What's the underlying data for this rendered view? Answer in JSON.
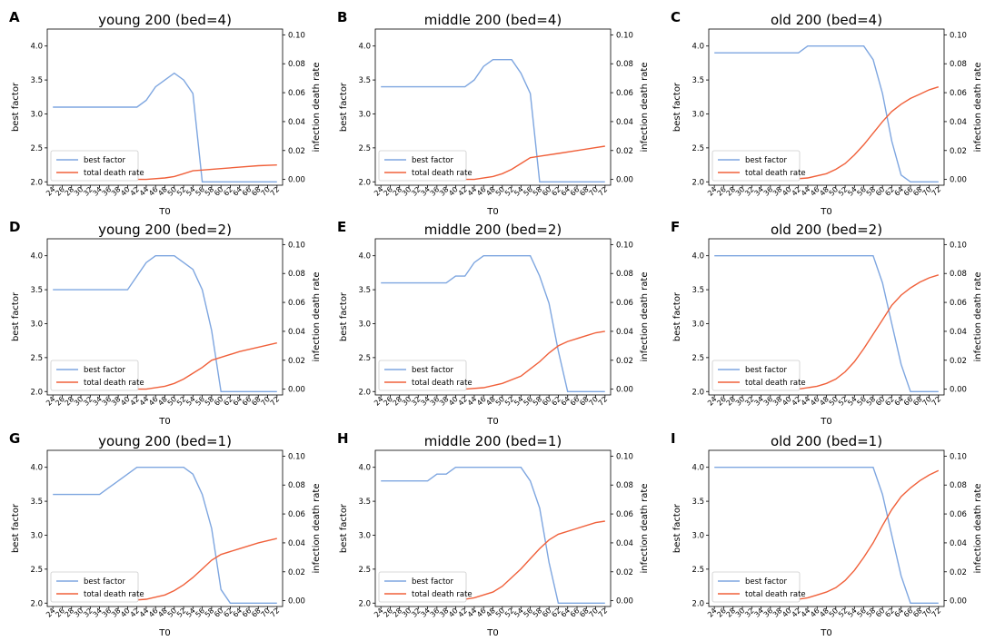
{
  "legend": {
    "best_label": "best factor",
    "death_label": "total death rate",
    "best_color": "#7ea6e0",
    "death_color": "#f0603a"
  },
  "axis_labels": {
    "xlabel": "T0",
    "ylabel_left": "best factor",
    "ylabel_right": "infection death rate"
  },
  "x_ticks": [
    24,
    26,
    28,
    30,
    32,
    34,
    36,
    38,
    40,
    42,
    44,
    46,
    48,
    50,
    52,
    54,
    56,
    58,
    60,
    62,
    64,
    66,
    68,
    70,
    72
  ],
  "left_ticks": [
    "2.0",
    "2.5",
    "3.0",
    "3.5",
    "4.0"
  ],
  "right_ticks": [
    "0.00",
    "0.02",
    "0.04",
    "0.06",
    "0.08",
    "0.10"
  ],
  "chart_data": [
    {
      "letter": "A",
      "title": "young 200 (bed=4)",
      "type": "line",
      "ylim_left": [
        1.95,
        4.25
      ],
      "ylim_right": [
        -0.004,
        0.104
      ],
      "best": [
        [
          24,
          3.1
        ],
        [
          42,
          3.1
        ],
        [
          44,
          3.2
        ],
        [
          46,
          3.4
        ],
        [
          48,
          3.5
        ],
        [
          50,
          3.6
        ],
        [
          52,
          3.5
        ],
        [
          54,
          3.3
        ],
        [
          56,
          2.0
        ],
        [
          72,
          2.0
        ]
      ],
      "death": [
        [
          24,
          0.0
        ],
        [
          44,
          0.0
        ],
        [
          48,
          0.001
        ],
        [
          50,
          0.002
        ],
        [
          52,
          0.004
        ],
        [
          54,
          0.006
        ],
        [
          56,
          0.0065
        ],
        [
          60,
          0.0075
        ],
        [
          64,
          0.0085
        ],
        [
          68,
          0.0095
        ],
        [
          72,
          0.01
        ]
      ]
    },
    {
      "letter": "B",
      "title": "middle 200 (bed=4)",
      "type": "line",
      "ylim_left": [
        1.95,
        4.25
      ],
      "ylim_right": [
        -0.004,
        0.104
      ],
      "best": [
        [
          24,
          3.4
        ],
        [
          42,
          3.4
        ],
        [
          44,
          3.5
        ],
        [
          46,
          3.7
        ],
        [
          48,
          3.8
        ],
        [
          50,
          3.8
        ],
        [
          52,
          3.8
        ],
        [
          54,
          3.6
        ],
        [
          56,
          3.3
        ],
        [
          58,
          2.0
        ],
        [
          72,
          2.0
        ]
      ],
      "death": [
        [
          24,
          0.0
        ],
        [
          44,
          0.0
        ],
        [
          48,
          0.002
        ],
        [
          50,
          0.004
        ],
        [
          52,
          0.007
        ],
        [
          54,
          0.011
        ],
        [
          56,
          0.015
        ],
        [
          58,
          0.016
        ],
        [
          62,
          0.018
        ],
        [
          66,
          0.02
        ],
        [
          70,
          0.022
        ],
        [
          72,
          0.023
        ]
      ]
    },
    {
      "letter": "C",
      "title": "old 200 (bed=4)",
      "type": "line",
      "ylim_left": [
        1.95,
        4.25
      ],
      "ylim_right": [
        -0.004,
        0.104
      ],
      "best": [
        [
          24,
          3.9
        ],
        [
          42,
          3.9
        ],
        [
          44,
          4.0
        ],
        [
          56,
          4.0
        ],
        [
          58,
          3.8
        ],
        [
          60,
          3.3
        ],
        [
          62,
          2.6
        ],
        [
          64,
          2.1
        ],
        [
          66,
          2.0
        ],
        [
          72,
          2.0
        ]
      ],
      "death": [
        [
          24,
          0.0
        ],
        [
          40,
          0.0
        ],
        [
          44,
          0.001
        ],
        [
          48,
          0.004
        ],
        [
          50,
          0.007
        ],
        [
          52,
          0.011
        ],
        [
          54,
          0.017
        ],
        [
          56,
          0.024
        ],
        [
          58,
          0.032
        ],
        [
          60,
          0.04
        ],
        [
          62,
          0.047
        ],
        [
          64,
          0.052
        ],
        [
          66,
          0.056
        ],
        [
          68,
          0.059
        ],
        [
          70,
          0.062
        ],
        [
          72,
          0.064
        ]
      ]
    },
    {
      "letter": "D",
      "title": "young 200 (bed=2)",
      "type": "line",
      "ylim_left": [
        1.95,
        4.25
      ],
      "ylim_right": [
        -0.004,
        0.104
      ],
      "best": [
        [
          24,
          3.5
        ],
        [
          40,
          3.5
        ],
        [
          42,
          3.7
        ],
        [
          44,
          3.9
        ],
        [
          46,
          4.0
        ],
        [
          50,
          4.0
        ],
        [
          52,
          3.9
        ],
        [
          54,
          3.8
        ],
        [
          56,
          3.5
        ],
        [
          58,
          2.9
        ],
        [
          60,
          2.0
        ],
        [
          72,
          2.0
        ]
      ],
      "death": [
        [
          24,
          0.0
        ],
        [
          44,
          0.0
        ],
        [
          48,
          0.002
        ],
        [
          50,
          0.004
        ],
        [
          52,
          0.007
        ],
        [
          54,
          0.011
        ],
        [
          56,
          0.015
        ],
        [
          58,
          0.02
        ],
        [
          60,
          0.022
        ],
        [
          64,
          0.026
        ],
        [
          68,
          0.029
        ],
        [
          72,
          0.032
        ]
      ]
    },
    {
      "letter": "E",
      "title": "middle 200 (bed=2)",
      "type": "line",
      "ylim_left": [
        1.95,
        4.25
      ],
      "ylim_right": [
        -0.004,
        0.104
      ],
      "best": [
        [
          24,
          3.6
        ],
        [
          38,
          3.6
        ],
        [
          40,
          3.7
        ],
        [
          42,
          3.7
        ],
        [
          44,
          3.9
        ],
        [
          46,
          4.0
        ],
        [
          56,
          4.0
        ],
        [
          58,
          3.7
        ],
        [
          60,
          3.3
        ],
        [
          62,
          2.6
        ],
        [
          64,
          2.0
        ],
        [
          72,
          2.0
        ]
      ],
      "death": [
        [
          24,
          0.0
        ],
        [
          42,
          0.0
        ],
        [
          46,
          0.001
        ],
        [
          50,
          0.004
        ],
        [
          54,
          0.009
        ],
        [
          56,
          0.014
        ],
        [
          58,
          0.019
        ],
        [
          60,
          0.025
        ],
        [
          62,
          0.03
        ],
        [
          64,
          0.033
        ],
        [
          66,
          0.035
        ],
        [
          68,
          0.037
        ],
        [
          70,
          0.039
        ],
        [
          72,
          0.04
        ]
      ]
    },
    {
      "letter": "F",
      "title": "old 200 (bed=2)",
      "type": "line",
      "ylim_left": [
        1.95,
        4.25
      ],
      "ylim_right": [
        -0.004,
        0.104
      ],
      "best": [
        [
          24,
          4.0
        ],
        [
          58,
          4.0
        ],
        [
          60,
          3.6
        ],
        [
          62,
          3.0
        ],
        [
          64,
          2.4
        ],
        [
          66,
          2.0
        ],
        [
          72,
          2.0
        ]
      ],
      "death": [
        [
          24,
          0.0
        ],
        [
          42,
          0.0
        ],
        [
          46,
          0.002
        ],
        [
          48,
          0.004
        ],
        [
          50,
          0.007
        ],
        [
          52,
          0.012
        ],
        [
          54,
          0.019
        ],
        [
          56,
          0.028
        ],
        [
          58,
          0.038
        ],
        [
          60,
          0.048
        ],
        [
          62,
          0.058
        ],
        [
          64,
          0.065
        ],
        [
          66,
          0.07
        ],
        [
          68,
          0.074
        ],
        [
          70,
          0.077
        ],
        [
          72,
          0.079
        ]
      ]
    },
    {
      "letter": "G",
      "title": "young 200 (bed=1)",
      "type": "line",
      "ylim_left": [
        1.95,
        4.25
      ],
      "ylim_right": [
        -0.004,
        0.104
      ],
      "best": [
        [
          24,
          3.6
        ],
        [
          34,
          3.6
        ],
        [
          36,
          3.7
        ],
        [
          38,
          3.8
        ],
        [
          40,
          3.9
        ],
        [
          42,
          4.0
        ],
        [
          52,
          4.0
        ],
        [
          54,
          3.9
        ],
        [
          56,
          3.6
        ],
        [
          58,
          3.1
        ],
        [
          60,
          2.2
        ],
        [
          62,
          2.0
        ],
        [
          72,
          2.0
        ]
      ],
      "death": [
        [
          24,
          0.0
        ],
        [
          40,
          0.0
        ],
        [
          44,
          0.001
        ],
        [
          48,
          0.004
        ],
        [
          50,
          0.007
        ],
        [
          52,
          0.011
        ],
        [
          54,
          0.016
        ],
        [
          56,
          0.022
        ],
        [
          58,
          0.028
        ],
        [
          60,
          0.032
        ],
        [
          64,
          0.036
        ],
        [
          68,
          0.04
        ],
        [
          72,
          0.043
        ]
      ]
    },
    {
      "letter": "H",
      "title": "middle 200 (bed=1)",
      "type": "line",
      "ylim_left": [
        1.95,
        4.25
      ],
      "ylim_right": [
        -0.004,
        0.104
      ],
      "best": [
        [
          24,
          3.8
        ],
        [
          34,
          3.8
        ],
        [
          36,
          3.9
        ],
        [
          38,
          3.9
        ],
        [
          40,
          4.0
        ],
        [
          54,
          4.0
        ],
        [
          56,
          3.8
        ],
        [
          58,
          3.4
        ],
        [
          60,
          2.6
        ],
        [
          62,
          2.0
        ],
        [
          72,
          2.0
        ]
      ],
      "death": [
        [
          24,
          0.0
        ],
        [
          40,
          0.0
        ],
        [
          44,
          0.002
        ],
        [
          48,
          0.006
        ],
        [
          50,
          0.01
        ],
        [
          52,
          0.016
        ],
        [
          54,
          0.022
        ],
        [
          56,
          0.029
        ],
        [
          58,
          0.036
        ],
        [
          60,
          0.042
        ],
        [
          62,
          0.046
        ],
        [
          66,
          0.05
        ],
        [
          70,
          0.054
        ],
        [
          72,
          0.055
        ]
      ]
    },
    {
      "letter": "I",
      "title": "old 200 (bed=1)",
      "type": "line",
      "ylim_left": [
        1.95,
        4.25
      ],
      "ylim_right": [
        -0.004,
        0.104
      ],
      "best": [
        [
          24,
          4.0
        ],
        [
          58,
          4.0
        ],
        [
          60,
          3.6
        ],
        [
          62,
          3.0
        ],
        [
          64,
          2.4
        ],
        [
          66,
          2.0
        ],
        [
          72,
          2.0
        ]
      ],
      "death": [
        [
          24,
          0.0
        ],
        [
          40,
          0.0
        ],
        [
          44,
          0.002
        ],
        [
          46,
          0.004
        ],
        [
          48,
          0.006
        ],
        [
          50,
          0.009
        ],
        [
          52,
          0.014
        ],
        [
          54,
          0.021
        ],
        [
          56,
          0.03
        ],
        [
          58,
          0.04
        ],
        [
          60,
          0.052
        ],
        [
          62,
          0.063
        ],
        [
          64,
          0.072
        ],
        [
          66,
          0.078
        ],
        [
          68,
          0.083
        ],
        [
          70,
          0.087
        ],
        [
          72,
          0.09
        ]
      ]
    }
  ]
}
